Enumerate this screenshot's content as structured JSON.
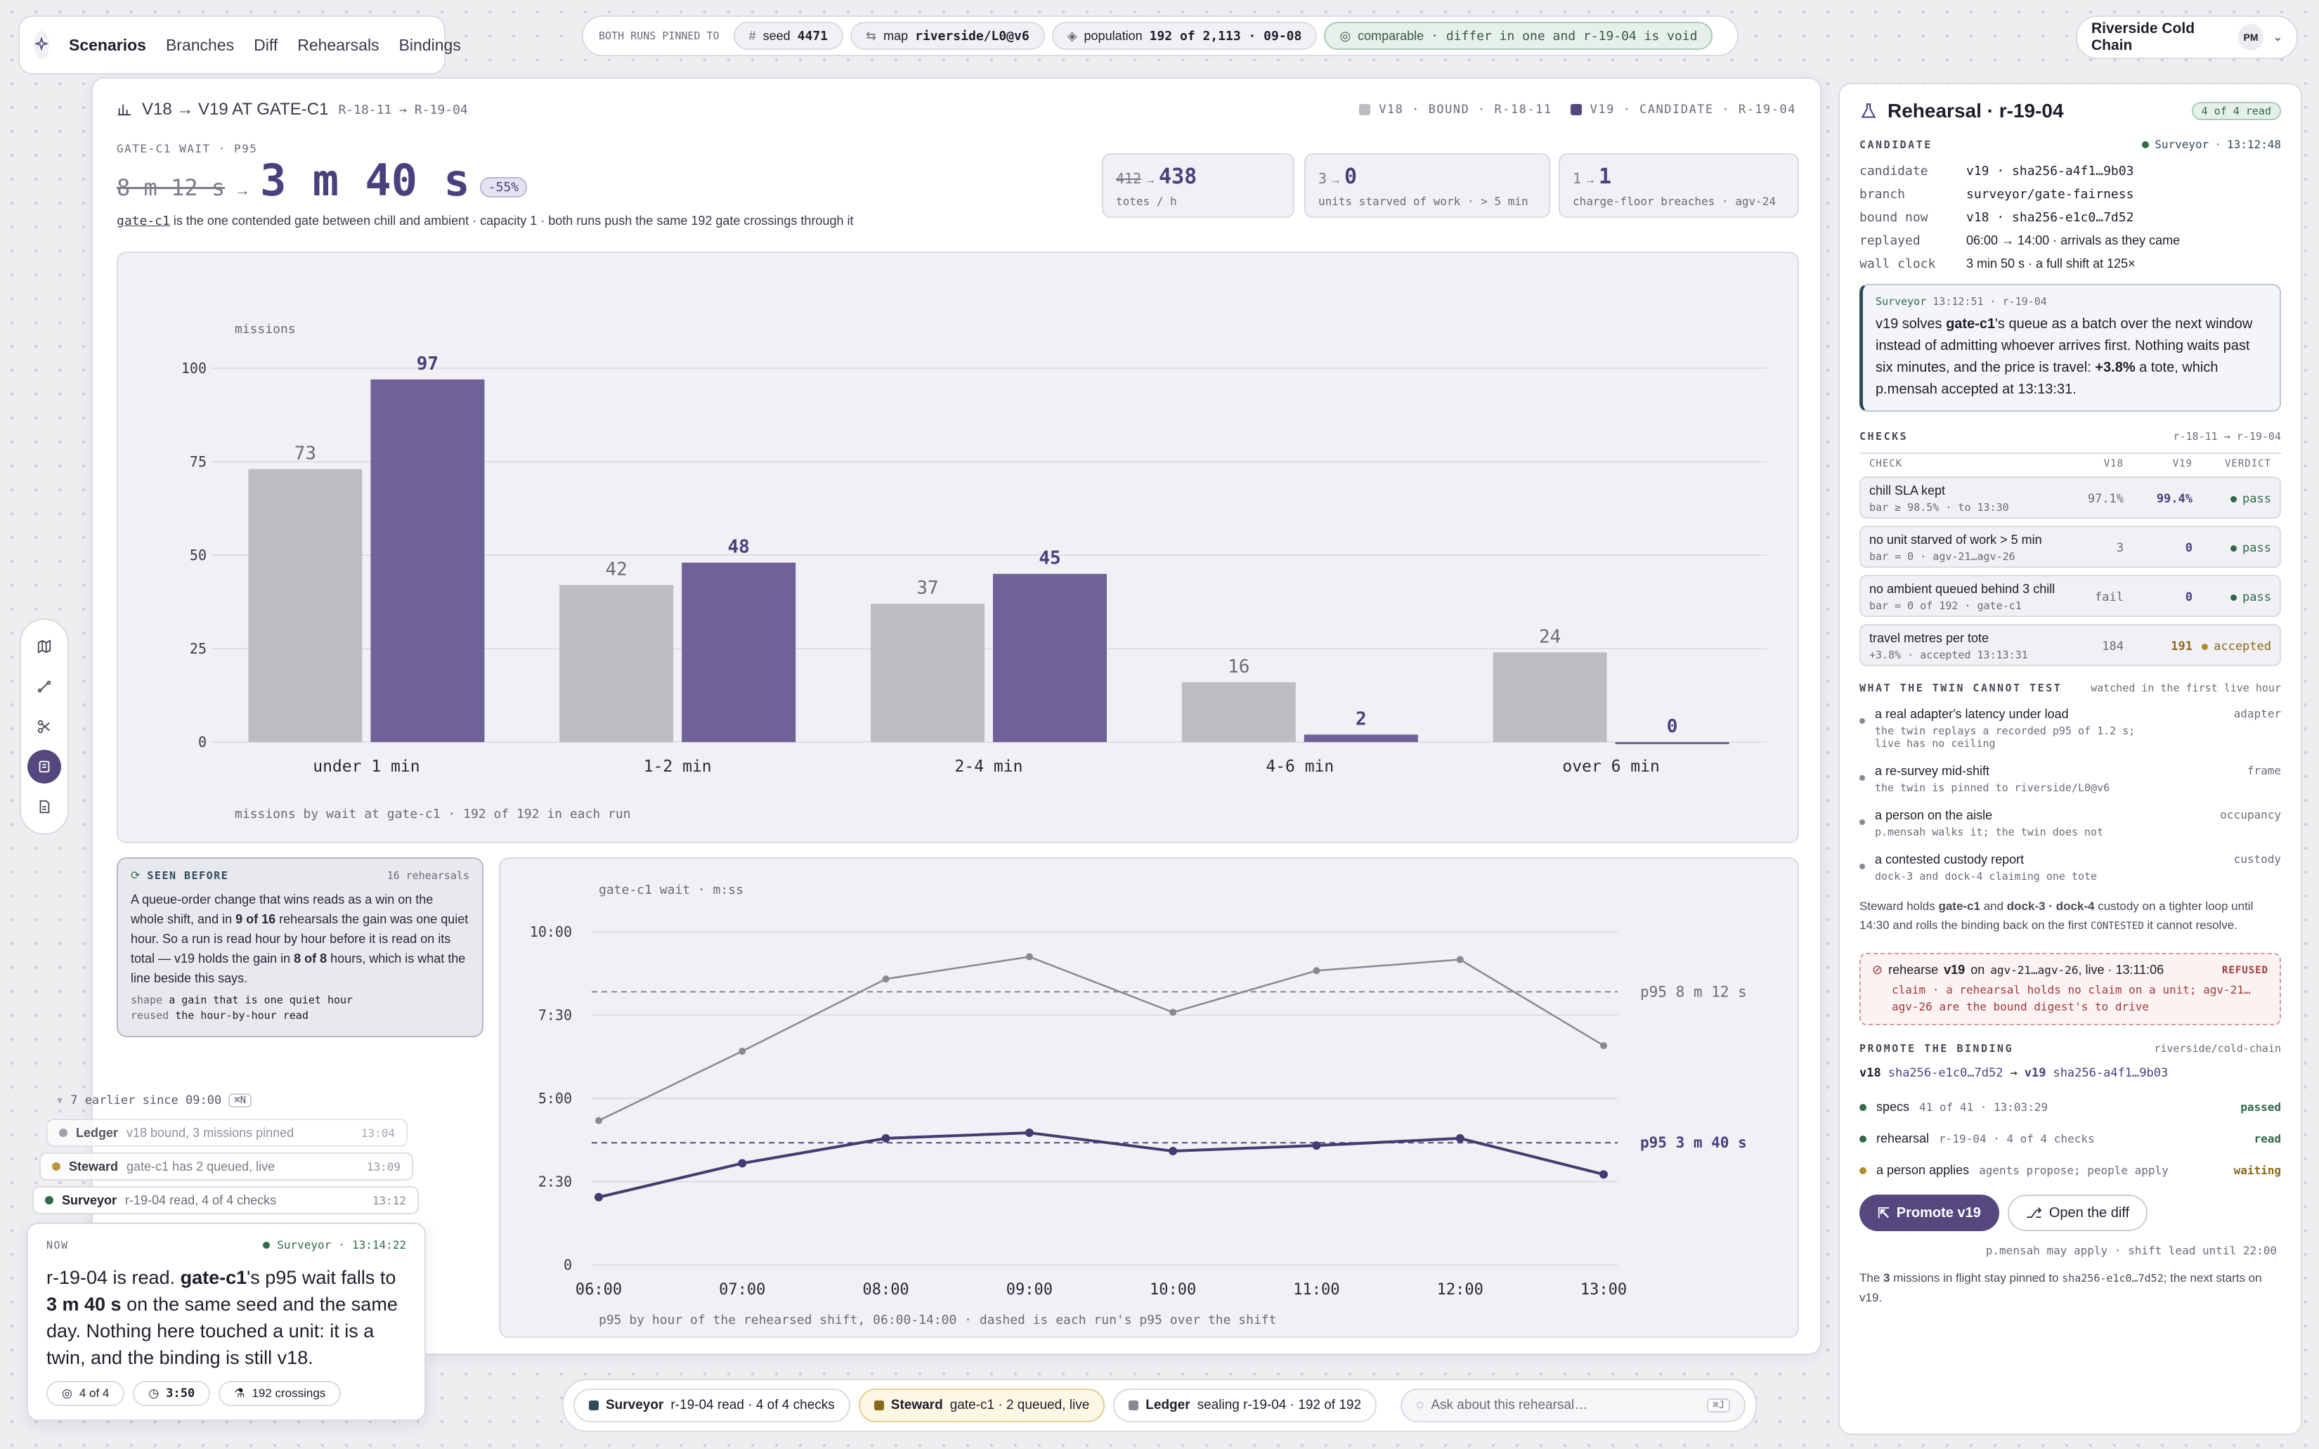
{
  "nav": {
    "logo": "sparkle-icon",
    "items": [
      {
        "label": "Scenarios",
        "active": true
      },
      {
        "label": "Branches"
      },
      {
        "label": "Diff"
      },
      {
        "label": "Rehearsals"
      },
      {
        "label": "Bindings"
      }
    ]
  },
  "pinbar": {
    "label": "BOTH RUNS PINNED TO",
    "seed": {
      "k": "seed",
      "v": "4471"
    },
    "map": {
      "k": "map",
      "v": "riverside/L0@v6"
    },
    "population": {
      "k": "population",
      "v": "192 of 2,113 · 09-08"
    },
    "comparable": {
      "k": "comparable",
      "v": "· differ in one and r-19-04 is void"
    }
  },
  "workspace": {
    "name": "Riverside Cold Chain",
    "avatar": "PM"
  },
  "main": {
    "title": "V18 → V19 AT GATE-C1",
    "range": "R-18-11 → R-19-04",
    "legend": {
      "a": "V18 · BOUND · R-18-11",
      "b": "V19 · CANDIDATE · R-19-04"
    },
    "metric_label": "GATE-C1 WAIT · P95",
    "old_value": "8 m 12 s",
    "new_value": "3 m 40 s",
    "delta": "-55%",
    "desc_code": "gate-c1",
    "desc": "is the one contended gate between chill and ambient · capacity 1 · both runs push the same 192 gate crossings through it",
    "kpis": [
      {
        "old": "412",
        "new": "438",
        "label": "totes / h"
      },
      {
        "old": "3",
        "new": "0",
        "label": "units starved of work · > 5 min"
      },
      {
        "old": "1",
        "new": "1",
        "label": "charge-floor breaches · agv-24"
      }
    ]
  },
  "chart_data": [
    {
      "type": "bar",
      "ylabel": "missions",
      "categories": [
        "under 1 min",
        "1-2 min",
        "2-4 min",
        "4-6 min",
        "over 6 min"
      ],
      "series": [
        {
          "name": "v18",
          "values": [
            73,
            42,
            37,
            16,
            24
          ]
        },
        {
          "name": "v19",
          "values": [
            97,
            48,
            45,
            2,
            0
          ]
        }
      ],
      "ylim": [
        0,
        100
      ],
      "yticks": [
        0,
        25,
        50,
        75,
        100
      ],
      "grid": true,
      "caption": "missions by wait at gate-c1 · 192 of 192 in each run",
      "colors": {
        "v18": "#bdbcc3",
        "v19": "#6e6298"
      }
    },
    {
      "type": "line",
      "ylabel": "gate-c1 wait · m:ss",
      "x": [
        "06:00",
        "07:00",
        "08:00",
        "09:00",
        "10:00",
        "11:00",
        "12:00",
        "13:00"
      ],
      "series": [
        {
          "name": "v18",
          "values": [
            260,
            385,
            515,
            555,
            455,
            530,
            550,
            395
          ]
        },
        {
          "name": "v19",
          "values": [
            122,
            183,
            228,
            238,
            205,
            215,
            228,
            163
          ]
        }
      ],
      "ylim": [
        0,
        600
      ],
      "yticks": [
        {
          "v": 0,
          "label": "0"
        },
        {
          "v": 150,
          "label": "2:30"
        },
        {
          "v": 300,
          "label": "5:00"
        },
        {
          "v": 450,
          "label": "7:30"
        },
        {
          "v": 600,
          "label": "10:00"
        }
      ],
      "p95": [
        {
          "v": 492,
          "label": "p95 8 m 12 s"
        },
        {
          "v": 220,
          "label": "p95 3 m 40 s"
        }
      ],
      "caption": "p95 by hour of the rehearsed shift, 06:00-14:00 · dashed is each run's p95 over the shift"
    }
  ],
  "seen": {
    "title": "SEEN BEFORE",
    "count": "16 rehearsals",
    "body_html": "A queue-order change that wins reads as a win on the whole shift, and in <b>9 of 16</b> rehearsals the gain was one quiet hour. So a run is read hour by hour before it is read on its total — v19 holds the gain in <b>8 of 8</b> hours, which is what the line beside this says.",
    "shape_k": "shape",
    "shape_v": "a gain that is one quiet hour",
    "reused_k": "reused",
    "reused_v": "the hour-by-hour read"
  },
  "feed": {
    "earlier": "7 earlier since 09:00",
    "kbd": "⌘N",
    "rows": [
      {
        "who": "Ledger",
        "msg": "v18 bound, 3 missions pinned",
        "t": "13:04"
      },
      {
        "who": "Steward",
        "msg": "gate-c1 has 2 queued, live",
        "t": "13:09"
      },
      {
        "who": "Surveyor",
        "msg": "r-19-04 read, 4 of 4 checks",
        "t": "13:12"
      }
    ]
  },
  "now": {
    "label": "NOW",
    "who": "Surveyor",
    "time": "13:14:22",
    "body_html": "r-19-04 is read. <b>gate-c1</b>'s p95 wait falls to <b>3 m 40 s</b> on the same seed and the same day. Nothing here touched a unit: it is a twin, and the binding is still v18.",
    "chips": [
      "4 of 4",
      "3:50",
      "192 crossings"
    ]
  },
  "bottom": {
    "items": [
      {
        "who": "Surveyor",
        "msg": "r-19-04 read · 4 of 4 checks"
      },
      {
        "who": "Steward",
        "msg": "gate-c1 · 2 queued, live"
      },
      {
        "who": "Ledger",
        "msg": "sealing r-19-04 · 192 of 192"
      }
    ],
    "placeholder": "Ask about this rehearsal…",
    "kbd": "⌘J"
  },
  "rp": {
    "title": "Rehearsal · r-19-04",
    "badge": "4 of 4 read",
    "candidate_label": "CANDIDATE",
    "surveyor": "Surveyor",
    "surveyor_time": "13:12:48",
    "kv": [
      {
        "k": "candidate",
        "v": "v19 · sha256-a4f1…9b03"
      },
      {
        "k": "branch",
        "v": "surveyor/gate-fairness"
      },
      {
        "k": "bound now",
        "v": "v18 · sha256-e1c0…7d52"
      },
      {
        "k": "replayed",
        "v": "06:00 → 14:00 · arrivals as they came"
      },
      {
        "k": "wall clock",
        "v": "3 min 50 s · a full shift at 125×"
      }
    ],
    "note": {
      "who": "Surveyor",
      "time": "13:12:51 · r-19-04",
      "body_html": "v19 solves <b>gate-c1</b>'s queue as a batch over the next window instead of admitting whoever arrives first. Nothing waits past six minutes, and the price is travel: <b>+3.8%</b> a tote, which p.mensah accepted at 13:13:31."
    },
    "checks_label": "CHECKS",
    "checks_range": "r-18-11 → r-19-04",
    "checks_cols": {
      "check": "CHECK",
      "v18": "V18",
      "v19": "V19",
      "verdict": "VERDICT"
    },
    "checks": [
      {
        "name": "chill SLA kept",
        "sub": "bar ≥ 98.5% · to 13:30",
        "v18": "97.1%",
        "v19": "99.4%",
        "verdict": "pass"
      },
      {
        "name": "no unit starved of work > 5 min",
        "sub": "bar = 0 · agv-21…agv-26",
        "v18": "3",
        "v19": "0",
        "verdict": "pass"
      },
      {
        "name": "no ambient queued behind 3 chill",
        "sub": "bar = 0 of 192 · gate-c1",
        "v18": "fail",
        "v19": "0",
        "verdict": "pass"
      },
      {
        "name": "travel metres per tote",
        "sub": "+3.8% · accepted 13:13:31",
        "v18": "184",
        "v19": "191",
        "verdict": "accepted"
      }
    ],
    "cant_label": "WHAT THE TWIN CANNOT TEST",
    "cant_sub": "watched in the first live hour",
    "cant": [
      {
        "t": "a real adapter's latency under load",
        "s": "the twin replays a recorded p95 of 1.2 s; live has no ceiling",
        "tag": "adapter"
      },
      {
        "t": "a re-survey mid-shift",
        "s": "the twin is pinned to riverside/L0@v6",
        "tag": "frame"
      },
      {
        "t": "a person on the aisle",
        "s": "p.mensah walks it; the twin does not",
        "tag": "occupancy"
      },
      {
        "t": "a contested custody report",
        "s": "dock-3 and dock-4 claiming one tote",
        "tag": "custody"
      }
    ],
    "steward_html": "Steward holds <b>gate-c1</b> and <b>dock-3 · dock-4</b> custody on a tighter loop until 14:30 and rolls the binding back on the first <span class=\"mono\" style=\"font-size:14px\">CONTESTED</span> it cannot resolve.",
    "refused": {
      "pre": "rehearse",
      "ver": "v19",
      "mid": "on",
      "units": "agv-21…agv-26",
      "post": ", live · 13:11:06",
      "tag": "REFUSED",
      "claim": "claim · a rehearsal holds no claim on a unit; agv-21…agv-26 are the bound digest's to drive"
    },
    "promote_label": "PROMOTE THE BINDING",
    "promote_target": "riverside/cold-chain",
    "promote_from": "v18",
    "promote_from_sha": "sha256-e1c0…7d52",
    "promote_to": "v19",
    "promote_to_sha": "sha256-a4f1…9b03",
    "promote_rows": [
      {
        "a": "specs",
        "b": "41 of 41 · 13:03:29",
        "st": "passed",
        "c": "#2f6b47"
      },
      {
        "a": "rehearsal",
        "b": "r-19-04 · 4 of 4 checks",
        "st": "read",
        "c": "#2f6b47"
      },
      {
        "a": "a person applies",
        "b": "agents propose; people apply",
        "st": "waiting",
        "c": "#8a6a1a"
      }
    ],
    "btn_primary": "Promote v19",
    "btn_secondary": "Open the diff",
    "apply_note": "p.mensah may apply · shift lead until 22:00",
    "footer_html": "The <b>3</b> missions in flight stay pinned to <span class=\"mono\" style=\"font-size:15px\">sha256-e1c0…7d52</span>; the next starts on v19."
  }
}
